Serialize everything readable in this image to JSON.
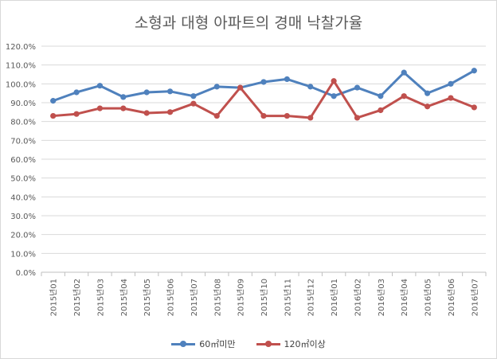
{
  "chart_data": {
    "type": "line",
    "title": "소형과 대형 아파트의 경매 낙찰가율",
    "xlabel": "",
    "ylabel": "",
    "categories": [
      "2015년01",
      "2015년02",
      "2015년03",
      "2015년04",
      "2015년05",
      "2015년06",
      "2015년07",
      "2015년08",
      "2015년09",
      "2015년10",
      "2015년11",
      "2015년12",
      "2016년01",
      "2016년02",
      "2016년03",
      "2016년04",
      "2016년05",
      "2016년06",
      "2016년07"
    ],
    "ylim": [
      0,
      120
    ],
    "yticks": [
      "0.0%",
      "10.0%",
      "20.0%",
      "30.0%",
      "40.0%",
      "50.0%",
      "60.0%",
      "70.0%",
      "80.0%",
      "90.0%",
      "100.0%",
      "110.0%",
      "120.0%"
    ],
    "grid": true,
    "legend_position": "bottom",
    "series": [
      {
        "name": "60㎡미만",
        "color": "#4f81bd",
        "values": [
          91.0,
          95.5,
          99.0,
          93.0,
          95.5,
          96.0,
          93.5,
          98.5,
          98.0,
          101.0,
          102.5,
          98.5,
          93.5,
          98.0,
          93.5,
          106.0,
          95.0,
          100.0,
          107.0
        ]
      },
      {
        "name": "120㎡이상",
        "color": "#c0504d",
        "values": [
          83.0,
          84.0,
          87.0,
          87.0,
          84.5,
          85.0,
          89.5,
          83.0,
          98.0,
          83.0,
          83.0,
          82.0,
          101.5,
          82.0,
          86.0,
          93.5,
          88.0,
          92.5,
          87.5
        ]
      }
    ]
  }
}
